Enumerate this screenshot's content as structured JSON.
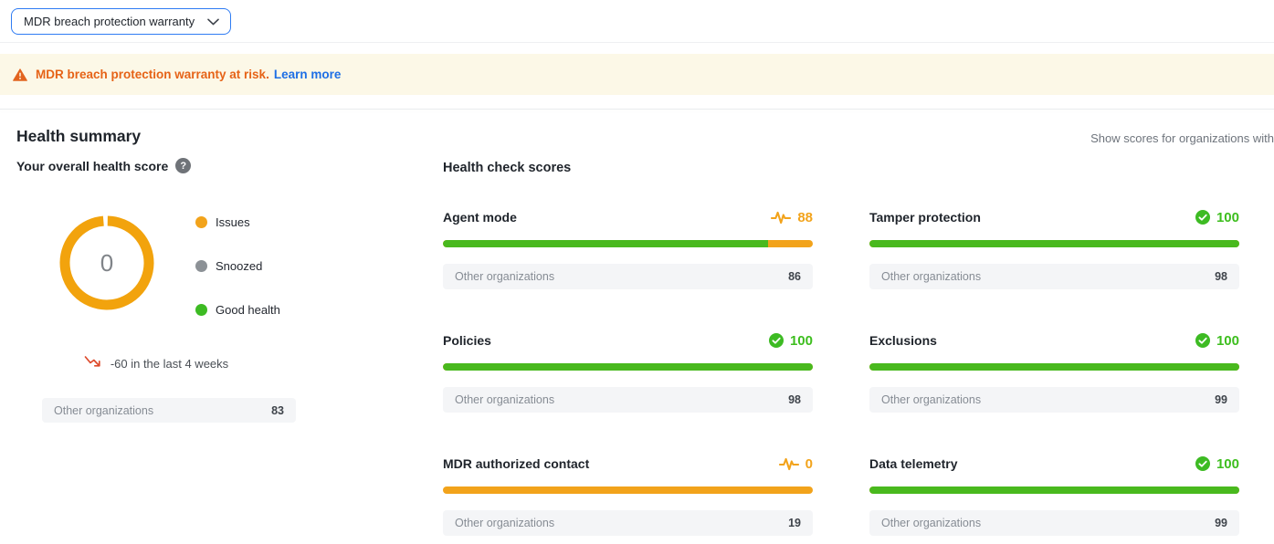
{
  "dropdown": {
    "value": "MDR breach protection warranty"
  },
  "banner": {
    "text": "MDR breach protection warranty at risk.",
    "link": "Learn more"
  },
  "header": {
    "title": "Health summary",
    "filter_note": "Show scores for organizations with"
  },
  "overall": {
    "title": "Your overall health score",
    "score": "0",
    "legend": [
      {
        "label": "Issues",
        "color": "#F2A31B"
      },
      {
        "label": "Snoozed",
        "color": "#8C9196"
      },
      {
        "label": "Good health",
        "color": "#3DBB23"
      }
    ],
    "trend_text": "-60 in the last 4 weeks",
    "benchmark_label": "Other organizations",
    "benchmark_value": "83"
  },
  "checks": {
    "title": "Health check scores",
    "cards": [
      {
        "name": "Agent mode",
        "score": 88,
        "status": "warning",
        "benchmark_label": "Other organizations",
        "benchmark": "86"
      },
      {
        "name": "Tamper protection",
        "score": 100,
        "status": "good",
        "benchmark_label": "Other organizations",
        "benchmark": "98"
      },
      {
        "name": "Policies",
        "score": 100,
        "status": "good",
        "benchmark_label": "Other organizations",
        "benchmark": "98"
      },
      {
        "name": "Exclusions",
        "score": 100,
        "status": "good",
        "benchmark_label": "Other organizations",
        "benchmark": "99"
      },
      {
        "name": "MDR authorized contact",
        "score": 0,
        "status": "warning",
        "benchmark_label": "Other organizations",
        "benchmark": "19"
      },
      {
        "name": "Data telemetry",
        "score": 100,
        "status": "good",
        "benchmark_label": "Other organizations",
        "benchmark": "99"
      }
    ]
  },
  "colors": {
    "accent_orange": "#F2A31B",
    "accent_green": "#49B91E",
    "banner_bg": "#FCF8E7",
    "banner_text": "#E66317",
    "link_blue": "#1D6FE5",
    "dropdown_border": "#2F7CF3"
  }
}
